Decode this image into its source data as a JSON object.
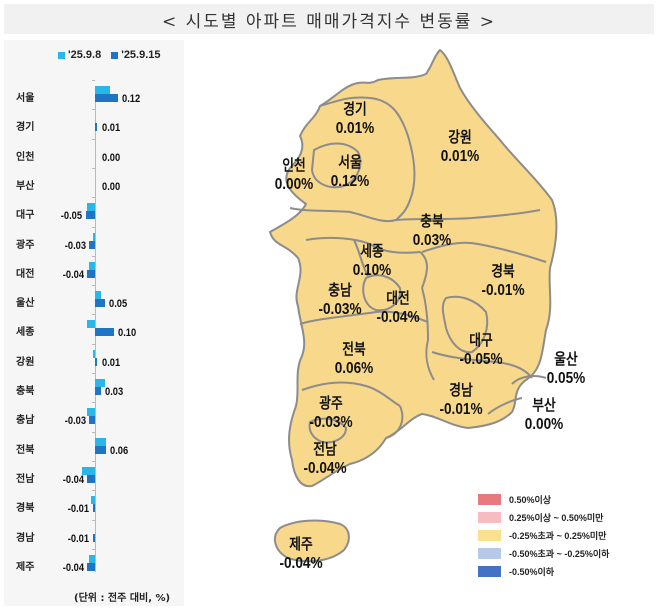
{
  "title": "< 시도별 아파트 매매가격지수 변동률 >",
  "colors": {
    "prev_week": "#29b6e9",
    "curr_week": "#1f74c4",
    "map_fill": "#f8d88a",
    "map_border": "#8c8c8c"
  },
  "chart_data": {
    "type": "bar",
    "orientation": "horizontal",
    "title": "시도별 아파트 매매가격지수 변동률",
    "unit_note": "(단위 : 전주 대비, %)",
    "categories": [
      "서울",
      "경기",
      "인천",
      "부산",
      "대구",
      "광주",
      "대전",
      "울산",
      "세종",
      "강원",
      "충북",
      "충남",
      "전북",
      "전남",
      "경북",
      "경남",
      "제주"
    ],
    "series": [
      {
        "name": "'25.9.8",
        "values": [
          0.08,
          0.0,
          0.0,
          0.0,
          -0.04,
          -0.01,
          -0.03,
          0.03,
          -0.04,
          -0.01,
          0.05,
          -0.04,
          0.06,
          -0.07,
          -0.02,
          0.0,
          -0.03
        ]
      },
      {
        "name": "'25.9.15",
        "values": [
          0.12,
          0.01,
          0.0,
          0.0,
          -0.05,
          -0.03,
          -0.04,
          0.05,
          0.1,
          0.01,
          0.03,
          -0.03,
          0.06,
          -0.04,
          -0.01,
          -0.01,
          -0.04
        ]
      }
    ],
    "labels_shown": [
      "0.12",
      "0.01",
      "0.00",
      "0.00",
      "-0.05",
      "-0.03",
      "-0.04",
      "0.05",
      "0.10",
      "0.01",
      "0.03",
      "-0.03",
      "0.06",
      "-0.04",
      "-0.01",
      "-0.01",
      "-0.04"
    ],
    "legend_position": "top",
    "grid": false
  },
  "left_chart": {
    "legend": [
      {
        "label": "'25.9.8"
      },
      {
        "label": "'25.9.15"
      }
    ],
    "unit_note": "(단위 : 전주 대비, %)"
  },
  "map": {
    "regions": [
      {
        "name": "경기",
        "value": "0.01%"
      },
      {
        "name": "강원",
        "value": "0.01%"
      },
      {
        "name": "인천",
        "value": "0.00%"
      },
      {
        "name": "서울",
        "value": "0.12%"
      },
      {
        "name": "충북",
        "value": "0.03%"
      },
      {
        "name": "세종",
        "value": "0.10%"
      },
      {
        "name": "충남",
        "value": "-0.03%"
      },
      {
        "name": "대전",
        "value": "-0.04%"
      },
      {
        "name": "경북",
        "value": "-0.01%"
      },
      {
        "name": "대구",
        "value": "-0.05%"
      },
      {
        "name": "전북",
        "value": "0.06%"
      },
      {
        "name": "울산",
        "value": "0.05%"
      },
      {
        "name": "광주",
        "value": "-0.03%"
      },
      {
        "name": "경남",
        "value": "-0.01%"
      },
      {
        "name": "부산",
        "value": "0.00%"
      },
      {
        "name": "전남",
        "value": "-0.04%"
      },
      {
        "name": "제주",
        "value": "-0.04%"
      }
    ],
    "legend": [
      {
        "label": "0.50%이상",
        "color": "#e77a7c"
      },
      {
        "label": "0.25%이상 ~ 0.50%미만",
        "color": "#f7bcc0"
      },
      {
        "label": "-0.25%초과 ~ 0.25%미만",
        "color": "#fbe08f"
      },
      {
        "label": "-0.50%초과 ~ -0.25%이하",
        "color": "#b7c9e8"
      },
      {
        "label": "-0.50%이하",
        "color": "#4472c4"
      }
    ]
  }
}
